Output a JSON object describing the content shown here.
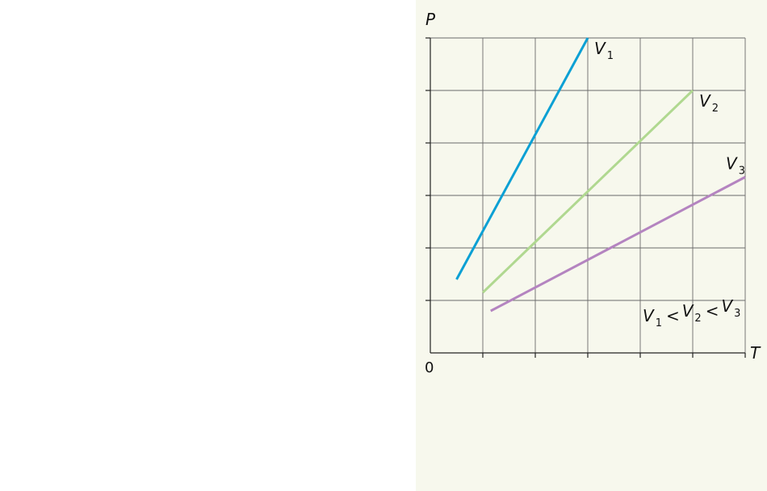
{
  "chart_data": {
    "type": "line",
    "xlabel": "T",
    "ylabel": "P",
    "origin_label": "0",
    "xlim": [
      0,
      6
    ],
    "ylim": [
      0,
      6
    ],
    "grid": true,
    "x_tick_count": 6,
    "y_tick_count": 6,
    "series": [
      {
        "name": "V",
        "subscript": "1",
        "color": "#0ba0d4",
        "x": [
          0.5,
          3.0
        ],
        "y": [
          1.4,
          6.0
        ]
      },
      {
        "name": "V",
        "subscript": "2",
        "color": "#b0d890",
        "x": [
          1.0,
          5.0
        ],
        "y": [
          1.15,
          5.0
        ]
      },
      {
        "name": "V",
        "subscript": "3",
        "color": "#b484c0",
        "x": [
          1.15,
          6.0
        ],
        "y": [
          0.8,
          3.35
        ]
      }
    ],
    "annotation": {
      "parts": [
        {
          "text": "V",
          "sub": "1"
        },
        {
          "text": "<"
        },
        {
          "text": "V",
          "sub": "2"
        },
        {
          "text": "<"
        },
        {
          "text": "V",
          "sub": "3"
        }
      ]
    }
  }
}
